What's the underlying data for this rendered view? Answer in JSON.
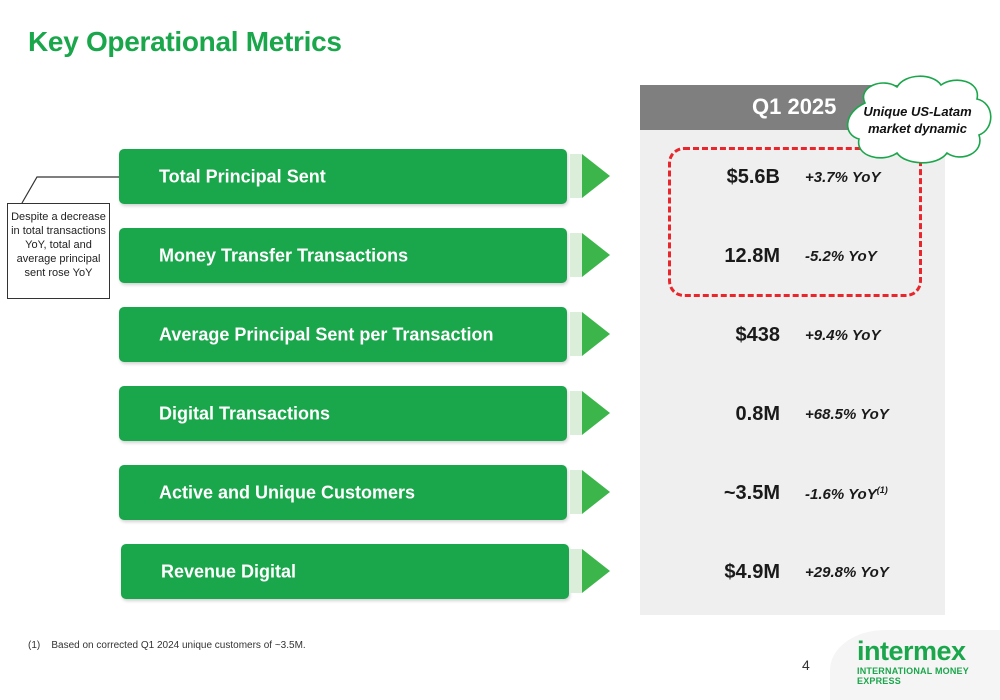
{
  "title": "Key Operational Metrics",
  "panel_header": "Q1 2025",
  "metrics": [
    {
      "label": "Total Principal Sent",
      "value": "$5.6B",
      "yoy": "+3.7% YoY",
      "footnote": ""
    },
    {
      "label": "Money Transfer Transactions",
      "value": "12.8M",
      "yoy": "-5.2% YoY",
      "footnote": ""
    },
    {
      "label": "Average Principal Sent per Transaction",
      "value": "$438",
      "yoy": "+9.4% YoY",
      "footnote": ""
    },
    {
      "label": "Digital Transactions",
      "value": "0.8M",
      "yoy": "+68.5% YoY",
      "footnote": ""
    },
    {
      "label": "Active and Unique Customers",
      "value": "~3.5M",
      "yoy": "-1.6% YoY",
      "footnote": "(1)"
    },
    {
      "label": "Revenue Digital",
      "value": "$4.9M",
      "yoy": "+29.8% YoY",
      "footnote": ""
    }
  ],
  "note": "Despite a decrease in total transactions YoY, total and average principal sent rose YoY",
  "callout": {
    "line1": "Unique US-Latam",
    "line2": "market dynamic"
  },
  "footnote": {
    "marker": "(1)",
    "text": "Based on corrected Q1 2024 unique customers of ~3.5M."
  },
  "page_number": "4",
  "logo": {
    "word": "intermex",
    "tagline": "INTERNATIONAL MONEY EXPRESS"
  },
  "colors": {
    "brand_green": "#1aa64b",
    "arrow_green": "#3cb54a",
    "header_gray": "#7f7f7f",
    "panel_bg": "#efefef",
    "highlight_red": "#e8262b"
  }
}
